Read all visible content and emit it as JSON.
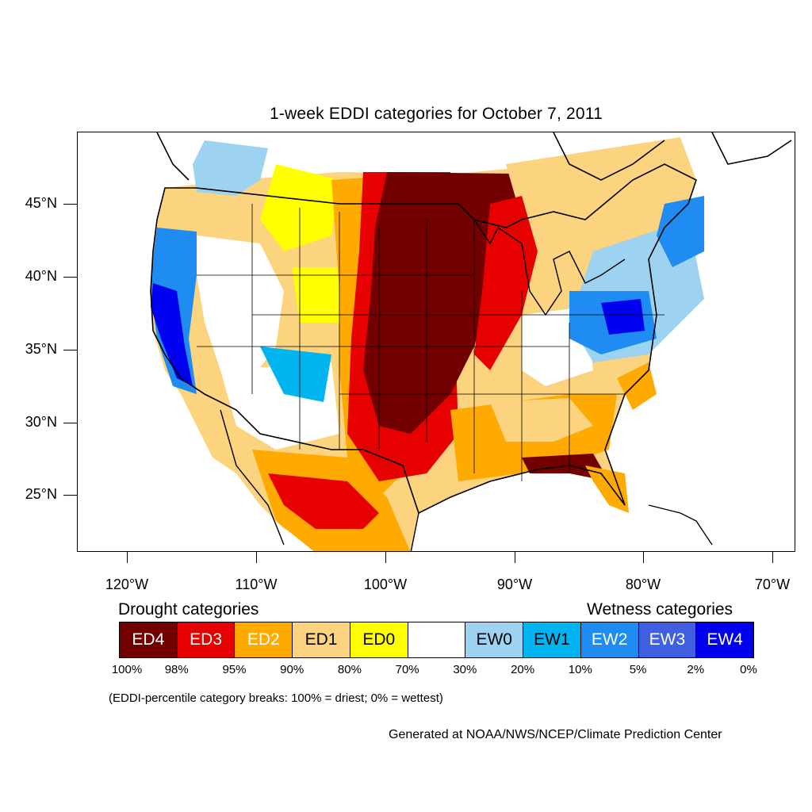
{
  "title": "1-week EDDI categories for October 7, 2011",
  "map": {
    "lat_labels": [
      "45°N",
      "40°N",
      "35°N",
      "30°N",
      "25°N"
    ],
    "lon_labels": [
      "120°W",
      "110°W",
      "100°W",
      "90°W",
      "80°W",
      "70°W"
    ]
  },
  "legend": {
    "drought_heading": "Drought categories",
    "wetness_heading": "Wetness categories",
    "categories": [
      {
        "label": "ED4",
        "color": "#730000",
        "text_color": "#ffffff"
      },
      {
        "label": "ED3",
        "color": "#e60000",
        "text_color": "#ffffff"
      },
      {
        "label": "ED2",
        "color": "#ffaa00",
        "text_color": "#ffffff"
      },
      {
        "label": "ED1",
        "color": "#fcd37f",
        "text_color": "#000000"
      },
      {
        "label": "ED0",
        "color": "#ffff00",
        "text_color": "#000000"
      },
      {
        "label": "",
        "color": "#ffffff",
        "text_color": "#000000"
      },
      {
        "label": "EW0",
        "color": "#9dd3f0",
        "text_color": "#000000"
      },
      {
        "label": "EW1",
        "color": "#00b4f0",
        "text_color": "#000000"
      },
      {
        "label": "EW2",
        "color": "#1e8cf0",
        "text_color": "#ffffff"
      },
      {
        "label": "EW3",
        "color": "#4160e1",
        "text_color": "#ffffff"
      },
      {
        "label": "EW4",
        "color": "#0000f0",
        "text_color": "#ffffff"
      }
    ],
    "breaks": [
      "100%",
      "98%",
      "95%",
      "90%",
      "80%",
      "70%",
      "30%",
      "20%",
      "10%",
      "5%",
      "2%",
      "0%"
    ],
    "note": "(EDDI-percentile category breaks: 100% = driest; 0% = wettest)"
  },
  "credit": "Generated at NOAA/NWS/NCEP/Climate Prediction Center"
}
